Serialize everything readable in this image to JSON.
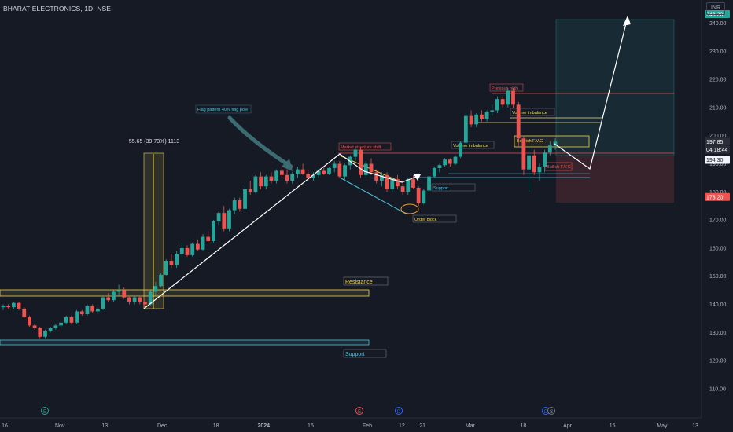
{
  "header": {
    "symbol": "BHARAT ELECTRONICS, 1D, NSE",
    "currency": "INR"
  },
  "colors": {
    "background": "#161a25",
    "up": "#26a69a",
    "down": "#ef5350",
    "axis_text": "#b2b5be",
    "arrow": "#ffffff",
    "resistance": "#f0d350",
    "support": "#4fc3dc",
    "fvg": "#f0d350",
    "previous_high": "#ef5350",
    "volume_imbalance": "#e8e27a"
  },
  "chart_data": {
    "type": "candlestick",
    "ylim": [
      103,
      246
    ],
    "y_ticks": [
      110,
      120,
      130,
      140,
      150,
      160,
      170,
      180,
      190,
      200,
      210,
      220,
      230,
      240
    ],
    "x_tick_labels": [
      "16",
      "Nov",
      "13",
      "Dec",
      "18",
      "2024",
      "15",
      "Feb",
      "12",
      "21",
      "Mar",
      "18",
      "Apr",
      "15",
      "May",
      "13"
    ],
    "bold_ticks": [
      "2024"
    ],
    "grid": false,
    "price_labels": [
      {
        "text": "243.20",
        "price": 243.2,
        "color": "#26a69a"
      },
      {
        "text": "197.85",
        "price": 197.85,
        "color": "#2a2e39"
      },
      {
        "text": "04:18:44",
        "price": 195.0,
        "color": "#2a2e39"
      },
      {
        "text": "194.30",
        "price": 191.4,
        "color": "#f0f3fa"
      },
      {
        "text": "178.20",
        "price": 178.2,
        "color": "#ef5350"
      }
    ],
    "candles": [
      [
        139,
        140,
        138,
        139.5
      ],
      [
        139.5,
        140,
        138.5,
        139
      ],
      [
        139,
        141,
        138.5,
        140.5
      ],
      [
        140.5,
        141,
        138,
        138.5
      ],
      [
        138.5,
        139,
        135,
        135.5
      ],
      [
        135.5,
        136,
        132,
        132.5
      ],
      [
        132.5,
        133,
        131,
        131.5
      ],
      [
        131.5,
        132,
        128,
        128.5
      ],
      [
        128.5,
        131,
        128,
        130.5
      ],
      [
        130.5,
        132,
        130,
        131.5
      ],
      [
        131.5,
        133,
        131,
        132.5
      ],
      [
        132.5,
        134,
        132,
        133.5
      ],
      [
        133.5,
        136,
        133,
        135.5
      ],
      [
        135.5,
        136,
        133,
        133.5
      ],
      [
        133.5,
        138,
        133,
        137.5
      ],
      [
        137.5,
        138,
        136,
        136.5
      ],
      [
        136.5,
        140,
        136,
        139.5
      ],
      [
        139.5,
        140,
        137,
        137.5
      ],
      [
        137.5,
        139,
        137,
        138.5
      ],
      [
        138.5,
        143,
        138,
        142.5
      ],
      [
        142.5,
        144,
        141,
        141.5
      ],
      [
        141.5,
        145,
        141,
        144.5
      ],
      [
        144.5,
        147,
        143,
        145
      ],
      [
        145,
        146,
        142,
        142.5
      ],
      [
        142.5,
        143,
        140,
        141
      ],
      [
        141,
        143,
        140,
        142.5
      ],
      [
        142.5,
        143,
        140,
        141
      ],
      [
        141,
        142,
        139,
        140
      ],
      [
        140,
        145,
        139.5,
        144.5
      ],
      [
        144.5,
        148,
        143,
        146.5
      ],
      [
        146.5,
        151,
        146,
        150.5
      ],
      [
        150.5,
        156,
        150,
        155.5
      ],
      [
        155.5,
        158,
        153,
        154
      ],
      [
        154,
        159,
        153,
        158
      ],
      [
        158,
        162,
        157,
        160
      ],
      [
        160,
        161,
        157,
        157.5
      ],
      [
        157.5,
        162,
        157,
        161.5
      ],
      [
        161.5,
        163,
        159,
        159.5
      ],
      [
        159.5,
        165,
        159,
        164
      ],
      [
        164,
        166,
        162,
        162.5
      ],
      [
        162.5,
        170,
        162,
        169.5
      ],
      [
        169.5,
        173,
        168,
        172.5
      ],
      [
        172.5,
        175,
        166,
        167
      ],
      [
        167,
        174,
        166,
        173.5
      ],
      [
        173.5,
        178,
        172,
        177
      ],
      [
        177,
        178,
        173,
        174
      ],
      [
        174,
        182,
        173.5,
        181
      ],
      [
        181,
        184,
        179,
        180
      ],
      [
        180,
        186,
        179.5,
        185.5
      ],
      [
        185.5,
        187,
        181,
        182
      ],
      [
        182,
        186,
        181,
        185.5
      ],
      [
        185.5,
        187,
        183,
        184
      ],
      [
        184,
        188,
        183,
        187.5
      ],
      [
        187.5,
        189,
        185,
        186
      ],
      [
        186,
        188,
        183,
        184
      ],
      [
        184,
        187,
        183,
        186.5
      ],
      [
        186.5,
        189,
        185,
        188
      ],
      [
        188,
        190,
        186,
        186.5
      ],
      [
        186.5,
        188,
        184,
        185
      ],
      [
        185,
        187,
        184,
        186
      ],
      [
        186,
        188,
        185,
        187.5
      ],
      [
        187.5,
        189,
        186,
        186.5
      ],
      [
        186.5,
        189,
        186,
        188.5
      ],
      [
        188.5,
        191,
        187,
        190
      ],
      [
        190,
        191,
        185,
        185.5
      ],
      [
        185.5,
        190,
        184,
        189.5
      ],
      [
        189.5,
        193,
        188,
        192.5
      ],
      [
        192.5,
        196,
        191,
        195
      ],
      [
        195,
        196,
        185,
        186
      ],
      [
        186,
        191,
        185,
        190
      ],
      [
        190,
        192,
        186,
        187
      ],
      [
        187,
        188,
        183,
        184
      ],
      [
        184,
        187,
        182,
        186
      ],
      [
        186,
        187,
        180,
        181
      ],
      [
        181,
        185,
        180,
        184.5
      ],
      [
        184.5,
        186,
        181,
        182
      ],
      [
        182,
        184,
        179,
        180
      ],
      [
        180,
        185,
        179,
        184.5
      ],
      [
        184.5,
        186,
        181,
        181.5
      ],
      [
        181.5,
        182,
        175,
        176
      ],
      [
        176,
        181,
        175.5,
        180.5
      ],
      [
        180.5,
        186,
        180,
        185.5
      ],
      [
        185.5,
        189,
        185,
        188.5
      ],
      [
        188.5,
        190,
        187,
        189.5
      ],
      [
        189.5,
        192,
        189,
        191.5
      ],
      [
        191.5,
        192,
        189,
        190
      ],
      [
        190,
        193,
        189.5,
        192.5
      ],
      [
        192.5,
        198,
        192,
        197.5
      ],
      [
        197.5,
        208,
        197,
        207
      ],
      [
        207,
        209,
        203,
        204
      ],
      [
        204,
        208,
        203,
        207.5
      ],
      [
        207.5,
        209,
        205,
        206
      ],
      [
        206,
        209,
        205,
        208.5
      ],
      [
        208.5,
        211,
        207,
        209
      ],
      [
        209,
        214,
        208,
        213
      ],
      [
        213,
        214,
        210,
        211
      ],
      [
        211,
        217,
        210,
        216
      ],
      [
        216,
        217,
        210,
        211
      ],
      [
        211,
        212,
        196,
        199
      ],
      [
        199,
        200,
        186,
        188
      ],
      [
        188,
        196,
        180,
        193
      ],
      [
        193,
        195,
        186,
        187
      ],
      [
        187,
        190,
        184,
        189
      ],
      [
        189,
        195,
        187,
        194
      ],
      [
        194,
        198,
        193,
        196.5
      ],
      [
        196.5,
        199,
        195,
        197.85
      ]
    ],
    "annotations": [
      {
        "text": "55.65 (39.73%) 1113"
      },
      {
        "text": "Flag pattern 40% flag pole"
      },
      {
        "text": "Market structure shift"
      },
      {
        "text": "Previous high"
      },
      {
        "text": "Volume imbalance"
      },
      {
        "text": "Volume imbalance"
      },
      {
        "text": "Bearish F.V.G"
      },
      {
        "text": "Bullish F.V.G"
      },
      {
        "text": "Support"
      },
      {
        "text": "Order block"
      },
      {
        "text": "Resistance"
      },
      {
        "text": "Support"
      }
    ]
  }
}
